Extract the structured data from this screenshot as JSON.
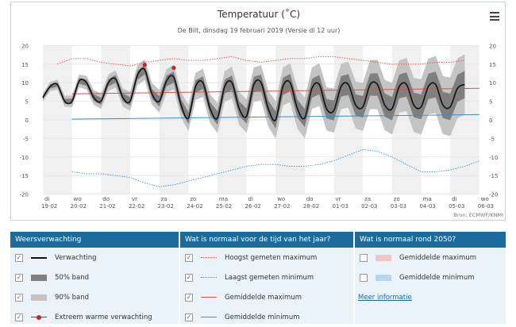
{
  "chart_data": {
    "type": "line",
    "title": "Temperatuur (˚C)",
    "subtitle": "De Bilt, dinsdag 19 februari 2019 (Versie di 12 uur)",
    "ylim": [
      -20,
      20
    ],
    "y_ticks": [
      -20,
      -15,
      -10,
      -5,
      0,
      5,
      10,
      15,
      20
    ],
    "x_labels": [
      {
        "day": "di",
        "date": "19-02"
      },
      {
        "day": "wo",
        "date": "20-02"
      },
      {
        "day": "do",
        "date": "21-02"
      },
      {
        "day": "vr",
        "date": "22-02"
      },
      {
        "day": "za",
        "date": "23-02"
      },
      {
        "day": "zo",
        "date": "24-02"
      },
      {
        "day": "ma",
        "date": "25-02"
      },
      {
        "day": "di",
        "date": "26-02"
      },
      {
        "day": "wo",
        "date": "27-02"
      },
      {
        "day": "do",
        "date": "28-02"
      },
      {
        "day": "vr",
        "date": "01-03"
      },
      {
        "day": "za",
        "date": "02-03"
      },
      {
        "day": "zo",
        "date": "03-03"
      },
      {
        "day": "ma",
        "date": "04-03"
      },
      {
        "day": "di",
        "date": "05-03"
      },
      {
        "day": "wo",
        "date": "06-03"
      }
    ],
    "series": [
      {
        "name": "Verwachting",
        "color": "#111111",
        "points": [
          [
            0,
            6
          ],
          [
            0.25,
            9
          ],
          [
            0.5,
            9.5
          ],
          [
            0.75,
            5
          ],
          [
            1,
            5
          ],
          [
            1.25,
            10.5
          ],
          [
            1.5,
            10
          ],
          [
            1.75,
            6
          ],
          [
            2,
            5
          ],
          [
            2.25,
            10
          ],
          [
            2.5,
            11
          ],
          [
            2.75,
            6
          ],
          [
            3,
            5
          ],
          [
            3.25,
            12
          ],
          [
            3.5,
            13.5
          ],
          [
            3.75,
            7
          ],
          [
            4,
            5
          ],
          [
            4.25,
            10.5
          ],
          [
            4.5,
            11.5
          ],
          [
            4.75,
            4
          ],
          [
            5,
            0.5
          ],
          [
            5.25,
            9
          ],
          [
            5.5,
            10
          ],
          [
            5.75,
            3
          ],
          [
            6,
            0.5
          ],
          [
            6.25,
            9
          ],
          [
            6.5,
            10
          ],
          [
            6.75,
            3
          ],
          [
            7,
            1
          ],
          [
            7.25,
            9.5
          ],
          [
            7.5,
            10
          ],
          [
            7.75,
            3
          ],
          [
            8,
            0
          ],
          [
            8.25,
            9
          ],
          [
            8.5,
            10
          ],
          [
            8.75,
            3
          ],
          [
            9,
            0.5
          ],
          [
            9.25,
            8.5
          ],
          [
            9.5,
            9.5
          ],
          [
            9.75,
            3
          ],
          [
            10,
            2.5
          ],
          [
            10.25,
            9
          ],
          [
            10.5,
            9.5
          ],
          [
            10.75,
            4
          ],
          [
            11,
            3.5
          ],
          [
            11.25,
            9.5
          ],
          [
            11.5,
            9.5
          ],
          [
            11.75,
            4
          ],
          [
            12,
            3
          ],
          [
            12.25,
            9
          ],
          [
            12.5,
            9.5
          ],
          [
            12.75,
            4
          ],
          [
            13,
            3.5
          ],
          [
            13.25,
            9
          ],
          [
            13.5,
            9.5
          ],
          [
            13.75,
            4
          ],
          [
            14,
            3.5
          ],
          [
            14.25,
            8.5
          ],
          [
            14.5,
            9.5
          ]
        ]
      },
      {
        "name": "Hoogst gemeten maximum",
        "color": "#d9534f",
        "points": [
          [
            0.5,
            15
          ],
          [
            1,
            16.5
          ],
          [
            1.5,
            16.5
          ],
          [
            2,
            15.5
          ],
          [
            2.5,
            15
          ],
          [
            3,
            14.5
          ],
          [
            3.5,
            15.5
          ],
          [
            4,
            16
          ],
          [
            4.5,
            16.5
          ],
          [
            5,
            16
          ],
          [
            5.5,
            16
          ],
          [
            6,
            16.5
          ],
          [
            6.5,
            17
          ],
          [
            7,
            16
          ],
          [
            7.5,
            15.5
          ],
          [
            8,
            16
          ],
          [
            8.5,
            16.5
          ],
          [
            9,
            16.5
          ],
          [
            9.5,
            17
          ],
          [
            10,
            17
          ],
          [
            10.5,
            16.5
          ],
          [
            11,
            16
          ],
          [
            11.5,
            15.5
          ],
          [
            12,
            15
          ],
          [
            12.5,
            15
          ],
          [
            13,
            15
          ],
          [
            13.5,
            15.5
          ],
          [
            14,
            15.5
          ],
          [
            14.5,
            16
          ]
        ]
      },
      {
        "name": "Laagst gemeten minimum",
        "color": "#3a8fd0",
        "points": [
          [
            1,
            -14
          ],
          [
            1.5,
            -14.5
          ],
          [
            2,
            -14.5
          ],
          [
            2.5,
            -15
          ],
          [
            3,
            -15.5
          ],
          [
            3.5,
            -17
          ],
          [
            4,
            -18
          ],
          [
            4.5,
            -17.5
          ],
          [
            5,
            -16.5
          ],
          [
            5.5,
            -15.5
          ],
          [
            6,
            -14.5
          ],
          [
            6.5,
            -13.5
          ],
          [
            7,
            -12.5
          ],
          [
            7.5,
            -12
          ],
          [
            8,
            -12
          ],
          [
            8.5,
            -12.5
          ],
          [
            9,
            -12.5
          ],
          [
            9.5,
            -12
          ],
          [
            10,
            -11
          ],
          [
            10.5,
            -9.5
          ],
          [
            11,
            -8
          ],
          [
            11.5,
            -8.5
          ],
          [
            12,
            -10
          ],
          [
            12.5,
            -12
          ],
          [
            13,
            -14
          ],
          [
            13.5,
            -14
          ],
          [
            14,
            -13.5
          ],
          [
            14.5,
            -12.5
          ],
          [
            15,
            -11
          ]
        ]
      },
      {
        "name": "Gemiddelde maximum",
        "color": "#d9534f",
        "points": [
          [
            1,
            7
          ],
          [
            15,
            8.5
          ]
        ]
      },
      {
        "name": "Gemiddelde minimum",
        "color": "#3a8fd0",
        "points": [
          [
            1,
            0.2
          ],
          [
            15,
            1.4
          ]
        ]
      }
    ],
    "extreme_points": [
      [
        3.5,
        14.8
      ],
      [
        4.5,
        14
      ]
    ]
  },
  "credit": "Bron: ECMWF/KNMI",
  "legend": {
    "col1": {
      "header": "Weersverwachting",
      "items": [
        "Verwachting",
        "50% band",
        "90% band",
        "Extreem warme verwachting"
      ]
    },
    "col2": {
      "header": "Wat is normaal voor de tijd van het jaar?",
      "items": [
        "Hoogst gemeten maximum",
        "Laagst gemeten minimum",
        "Gemiddelde maximum",
        "Gemiddelde minimum"
      ]
    },
    "col3": {
      "header": "Wat is normaal rond 2050?",
      "items": [
        "Gemiddelde maximum",
        "Gemiddelde minimum"
      ],
      "link": "Meer informatie"
    }
  },
  "colors": {
    "header_bg": "#1b6c9c",
    "legend_bg": "#eaf3f9",
    "band50": "#7f7f7f",
    "band90": "#c4c4c4"
  }
}
